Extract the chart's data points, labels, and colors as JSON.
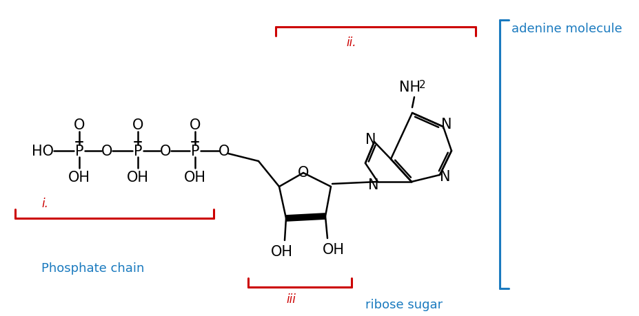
{
  "bg_color": "#ffffff",
  "molecule_color": "#000000",
  "red_color": "#cc0000",
  "blue_color": "#1a7abf",
  "labels": {
    "adenine_molecule": "adenine molecule",
    "phosphate_chain": "Phosphate chain",
    "ribose_sugar": "ribose sugar",
    "roman_i": "i.",
    "roman_ii": "ii.",
    "roman_iii": "iii"
  },
  "figsize": [
    9.28,
    4.6
  ],
  "dpi": 100
}
